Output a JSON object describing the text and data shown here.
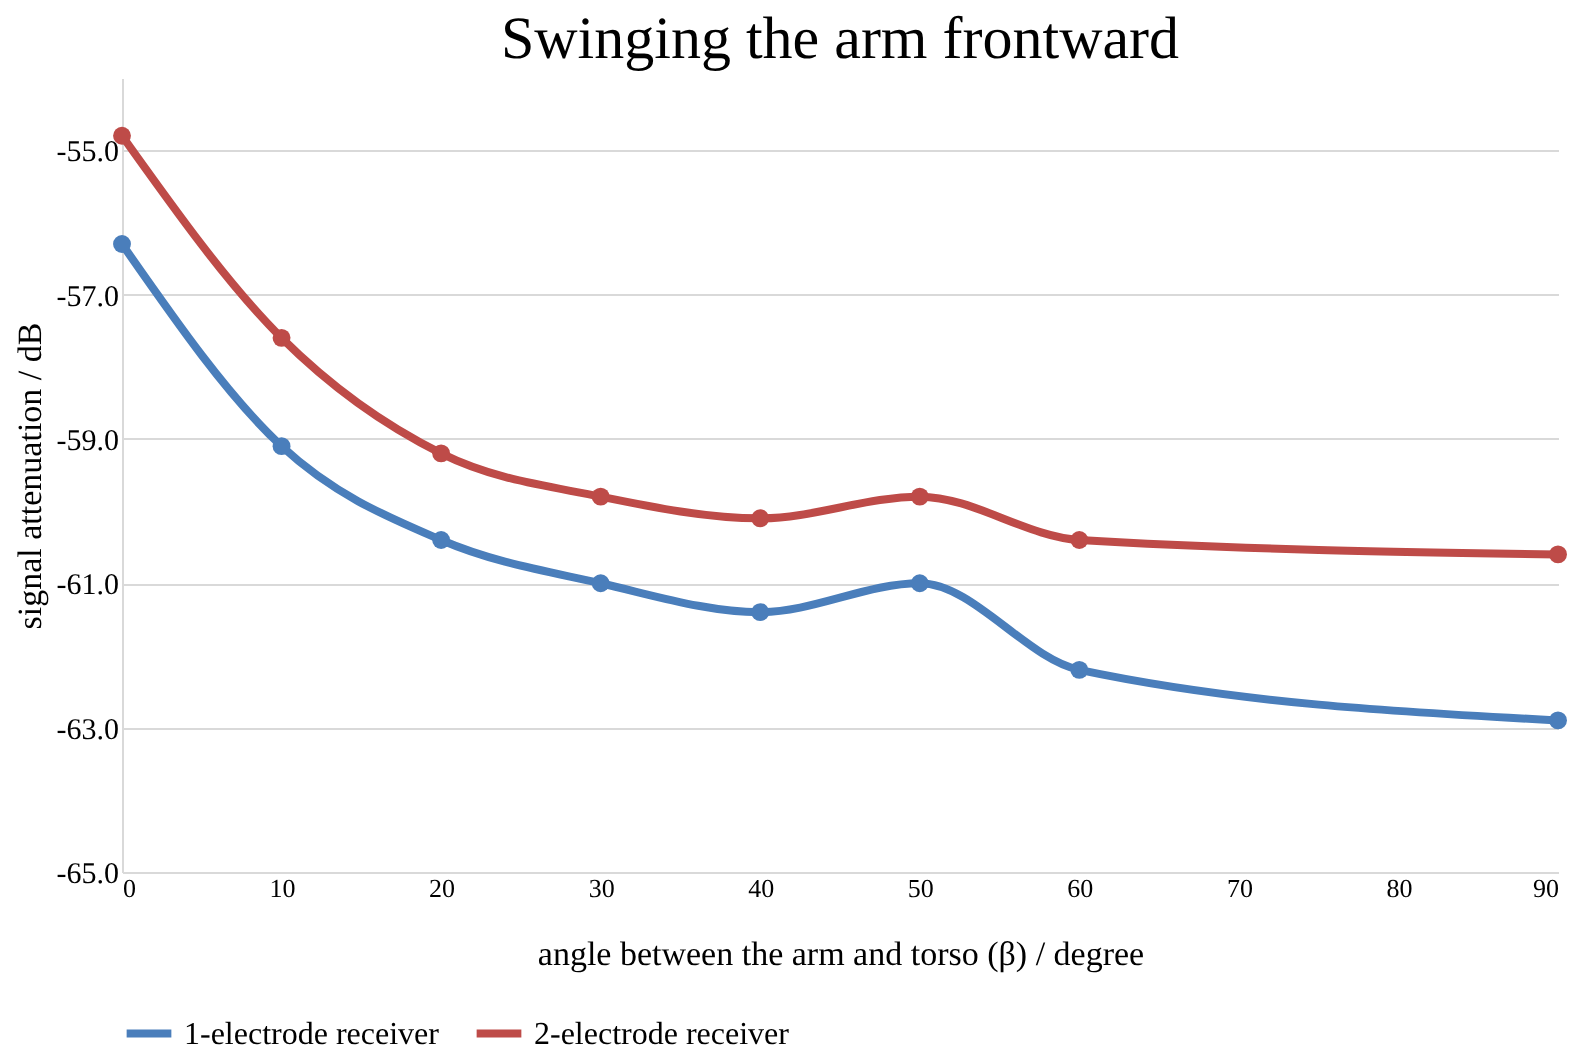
{
  "chart_data": {
    "type": "line",
    "title": "Swinging the arm frontward",
    "xlabel": "angle between the arm and torso (β) / degree",
    "ylabel": "signal attenuation / dB",
    "x": [
      0,
      10,
      20,
      30,
      40,
      50,
      60,
      90
    ],
    "series": [
      {
        "name": "1-electrode receiver",
        "color": "#4a7ebb",
        "values": [
          -56.3,
          -59.1,
          -60.4,
          -61.0,
          -61.4,
          -61.0,
          -62.2,
          -62.9
        ]
      },
      {
        "name": "2-electrode receiver",
        "color": "#be4b48",
        "values": [
          -54.8,
          -57.6,
          -59.2,
          -59.8,
          -60.1,
          -59.8,
          -60.4,
          -60.6
        ]
      }
    ],
    "xlim": [
      0,
      90
    ],
    "xticks": [
      0,
      10,
      20,
      30,
      40,
      50,
      60,
      70,
      80,
      90
    ],
    "ylim": [
      -65,
      -54
    ],
    "yticks": [
      {
        "value": -65,
        "label": "-65.0"
      },
      {
        "value": -63,
        "label": "-63.0"
      },
      {
        "value": -61,
        "label": "-61.0"
      },
      {
        "value": -59,
        "label": "-59.0"
      },
      {
        "value": -57,
        "label": "-57.0"
      },
      {
        "value": -55,
        "label": "-55.0"
      }
    ],
    "grid": "y",
    "legend": "bottom",
    "marker": "circle",
    "line_style": "solid"
  }
}
